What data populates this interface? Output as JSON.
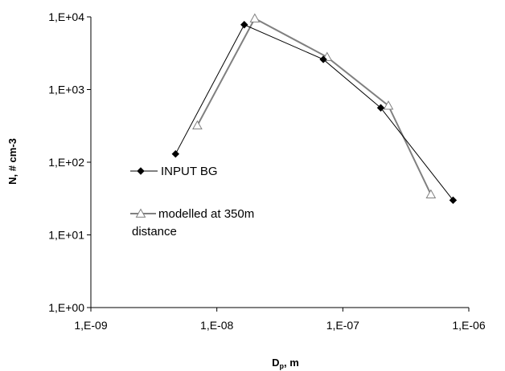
{
  "chart_data": {
    "type": "line",
    "x_scale": "log",
    "y_scale": "log",
    "xlim": [
      1e-09,
      1e-06
    ],
    "ylim": [
      1,
      10000
    ],
    "xlabel_main": "D",
    "xlabel_sub": "p",
    "xlabel_rest": ", m",
    "ylabel": "N, # cm-3",
    "x_ticks": [
      {
        "value": 1e-09,
        "label": "1,E-09"
      },
      {
        "value": 1e-08,
        "label": "1,E-08"
      },
      {
        "value": 1e-07,
        "label": "1,E-07"
      },
      {
        "value": 1e-06,
        "label": "1,E-06"
      }
    ],
    "y_ticks": [
      {
        "value": 1,
        "label": "1,E+00"
      },
      {
        "value": 10,
        "label": "1,E+01"
      },
      {
        "value": 100,
        "label": "1,E+02"
      },
      {
        "value": 1000,
        "label": "1,E+03"
      },
      {
        "value": 10000,
        "label": "1,E+04"
      }
    ],
    "grid": false,
    "legend_position": "left-middle",
    "series": [
      {
        "name": "INPUT BG",
        "marker": "diamond",
        "color": "#000000",
        "x": [
          4.7e-09,
          1.65e-08,
          7e-08,
          2e-07,
          7.5e-07
        ],
        "y": [
          130,
          7800,
          2600,
          560,
          30
        ]
      },
      {
        "name_lines": [
          "modelled at 350m",
          "distance"
        ],
        "marker": "triangle",
        "color": "#808080",
        "x": [
          7e-09,
          2e-08,
          7.5e-08,
          2.3e-07,
          5e-07
        ],
        "y": [
          320,
          9500,
          2800,
          600,
          36
        ]
      }
    ]
  }
}
